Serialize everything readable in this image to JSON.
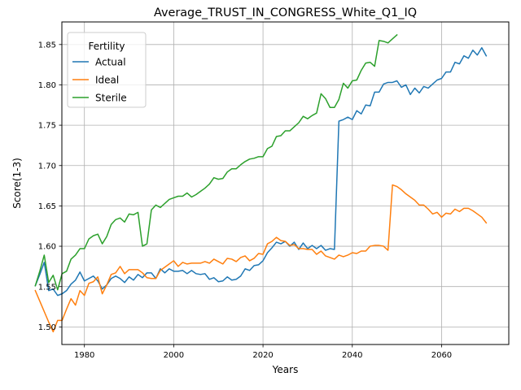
{
  "chart_data": {
    "type": "line",
    "title": "Average_TRUST_IN_CONGRESS_White_Q1_IQ",
    "xlabel": "Years",
    "ylabel": "Score(1-3)",
    "xlim": [
      1974.95,
      2075.05
    ],
    "ylim": [
      1.4782,
      1.878
    ],
    "xticks": [
      1980,
      2000,
      2020,
      2040,
      2060
    ],
    "yticks": [
      1.5,
      1.55,
      1.6,
      1.65,
      1.7,
      1.75,
      1.8,
      1.85
    ],
    "ytick_labels": [
      "1.50",
      "1.55",
      "1.60",
      "1.65",
      "1.70",
      "1.75",
      "1.80",
      "1.85"
    ],
    "grid": true,
    "legend": {
      "title": "Fertility",
      "placement": "top-left"
    },
    "series": [
      {
        "name": "Actual",
        "color": "#1f77b4",
        "x": [
          1969,
          1970,
          1971,
          1972,
          1973,
          1974,
          1975,
          1976,
          1977,
          1978,
          1979,
          1980,
          1981,
          1982,
          1983,
          1984,
          1985,
          1986,
          1987,
          1988,
          1989,
          1990,
          1991,
          1992,
          1993,
          1994,
          1995,
          1996,
          1997,
          1998,
          1999,
          2000,
          2001,
          2002,
          2003,
          2004,
          2005,
          2006,
          2007,
          2008,
          2009,
          2010,
          2011,
          2012,
          2013,
          2014,
          2015,
          2016,
          2017,
          2018,
          2019,
          2020,
          2021,
          2022,
          2023,
          2024,
          2025,
          2026,
          2027,
          2028,
          2029,
          2030,
          2031,
          2032,
          2033,
          2034,
          2035,
          2036,
          2037,
          2038,
          2039,
          2040,
          2041,
          2042,
          2043,
          2044,
          2045,
          2046,
          2047,
          2048,
          2049,
          2050,
          2051,
          2052,
          2053,
          2054,
          2055,
          2056,
          2057,
          2058,
          2059,
          2060,
          2061,
          2062,
          2063,
          2064,
          2065,
          2066,
          2067,
          2068,
          2069,
          2070
        ],
        "values": [
          1.551,
          1.565,
          1.58,
          1.545,
          1.547,
          1.539,
          1.541,
          1.545,
          1.553,
          1.558,
          1.568,
          1.557,
          1.56,
          1.563,
          1.557,
          1.547,
          1.552,
          1.56,
          1.563,
          1.56,
          1.555,
          1.562,
          1.558,
          1.565,
          1.561,
          1.567,
          1.567,
          1.56,
          1.572,
          1.567,
          1.572,
          1.569,
          1.569,
          1.57,
          1.566,
          1.57,
          1.566,
          1.565,
          1.566,
          1.559,
          1.561,
          1.556,
          1.557,
          1.562,
          1.558,
          1.559,
          1.563,
          1.572,
          1.57,
          1.576,
          1.577,
          1.582,
          1.592,
          1.598,
          1.605,
          1.603,
          1.606,
          1.6,
          1.605,
          1.596,
          1.604,
          1.597,
          1.601,
          1.597,
          1.601,
          1.595,
          1.597,
          1.596,
          1.755,
          1.757,
          1.76,
          1.757,
          1.768,
          1.764,
          1.775,
          1.774,
          1.791,
          1.791,
          1.801,
          1.803,
          1.803,
          1.805,
          1.797,
          1.8,
          1.788,
          1.796,
          1.79,
          1.798,
          1.796,
          1.801,
          1.806,
          1.808,
          1.816,
          1.816,
          1.828,
          1.826,
          1.836,
          1.833,
          1.843,
          1.837,
          1.846,
          1.836
        ]
      },
      {
        "name": "Ideal",
        "color": "#ff7f0e",
        "x": [
          1969,
          1970,
          1971,
          1972,
          1973,
          1974,
          1975,
          1976,
          1977,
          1978,
          1979,
          1980,
          1981,
          1982,
          1983,
          1984,
          1985,
          1986,
          1987,
          1988,
          1989,
          1990,
          1991,
          1992,
          1993,
          1994,
          1995,
          1996,
          1997,
          1998,
          1999,
          2000,
          2001,
          2002,
          2003,
          2004,
          2005,
          2006,
          2007,
          2008,
          2009,
          2010,
          2011,
          2012,
          2013,
          2014,
          2015,
          2016,
          2017,
          2018,
          2019,
          2020,
          2021,
          2022,
          2023,
          2024,
          2025,
          2026,
          2027,
          2028,
          2029,
          2030,
          2031,
          2032,
          2033,
          2034,
          2035,
          2036,
          2037,
          2038,
          2039,
          2040,
          2041,
          2042,
          2043,
          2044,
          2045,
          2046,
          2047,
          2048,
          2049,
          2050,
          2051,
          2052,
          2053,
          2054,
          2055,
          2056,
          2057,
          2058,
          2059,
          2060,
          2061,
          2062,
          2063,
          2064,
          2065,
          2066,
          2067,
          2068,
          2069,
          2070
        ],
        "values": [
          1.545,
          1.532,
          1.519,
          1.506,
          1.494,
          1.508,
          1.508,
          1.522,
          1.535,
          1.527,
          1.545,
          1.539,
          1.554,
          1.556,
          1.562,
          1.541,
          1.552,
          1.565,
          1.567,
          1.575,
          1.566,
          1.571,
          1.571,
          1.571,
          1.567,
          1.561,
          1.56,
          1.56,
          1.57,
          1.574,
          1.578,
          1.582,
          1.575,
          1.58,
          1.578,
          1.579,
          1.579,
          1.579,
          1.581,
          1.579,
          1.584,
          1.581,
          1.578,
          1.585,
          1.584,
          1.581,
          1.586,
          1.588,
          1.582,
          1.585,
          1.591,
          1.59,
          1.603,
          1.606,
          1.611,
          1.607,
          1.606,
          1.601,
          1.602,
          1.597,
          1.597,
          1.596,
          1.596,
          1.59,
          1.594,
          1.588,
          1.586,
          1.584,
          1.589,
          1.587,
          1.589,
          1.592,
          1.591,
          1.594,
          1.594,
          1.6,
          1.601,
          1.601,
          1.6,
          1.595,
          1.676,
          1.674,
          1.67,
          1.665,
          1.661,
          1.657,
          1.651,
          1.651,
          1.646,
          1.64,
          1.642,
          1.636,
          1.641,
          1.64,
          1.646,
          1.643,
          1.647,
          1.647,
          1.644,
          1.64,
          1.636,
          1.629
        ]
      },
      {
        "name": "Sterile",
        "color": "#2ca02c",
        "x": [
          1969,
          1970,
          1971,
          1972,
          1973,
          1974,
          1975,
          1976,
          1977,
          1978,
          1979,
          1980,
          1981,
          1982,
          1983,
          1984,
          1985,
          1986,
          1987,
          1988,
          1989,
          1990,
          1991,
          1992,
          1993,
          1994,
          1995,
          1996,
          1997,
          1998,
          1999,
          2000,
          2001,
          2002,
          2003,
          2004,
          2005,
          2006,
          2007,
          2008,
          2009,
          2010,
          2011,
          2012,
          2013,
          2014,
          2015,
          2016,
          2017,
          2018,
          2019,
          2020,
          2021,
          2022,
          2023,
          2024,
          2025,
          2026,
          2027,
          2028,
          2029,
          2030,
          2031,
          2032,
          2033,
          2034,
          2035,
          2036,
          2037,
          2038,
          2039,
          2040,
          2041,
          2042,
          2043,
          2044,
          2045,
          2046,
          2047,
          2048,
          2049,
          2050
        ],
        "values": [
          1.551,
          1.569,
          1.589,
          1.555,
          1.564,
          1.546,
          1.566,
          1.569,
          1.584,
          1.589,
          1.597,
          1.597,
          1.609,
          1.613,
          1.615,
          1.603,
          1.612,
          1.627,
          1.633,
          1.635,
          1.63,
          1.64,
          1.639,
          1.642,
          1.6,
          1.603,
          1.645,
          1.651,
          1.648,
          1.653,
          1.658,
          1.66,
          1.662,
          1.662,
          1.666,
          1.661,
          1.664,
          1.668,
          1.672,
          1.677,
          1.685,
          1.683,
          1.684,
          1.692,
          1.696,
          1.696,
          1.701,
          1.705,
          1.708,
          1.709,
          1.711,
          1.711,
          1.721,
          1.724,
          1.736,
          1.737,
          1.743,
          1.743,
          1.748,
          1.753,
          1.761,
          1.758,
          1.762,
          1.765,
          1.789,
          1.783,
          1.772,
          1.772,
          1.782,
          1.802,
          1.796,
          1.805,
          1.806,
          1.818,
          1.827,
          1.828,
          1.823,
          1.855,
          1.854,
          1.852,
          1.857,
          1.862
        ]
      }
    ]
  }
}
